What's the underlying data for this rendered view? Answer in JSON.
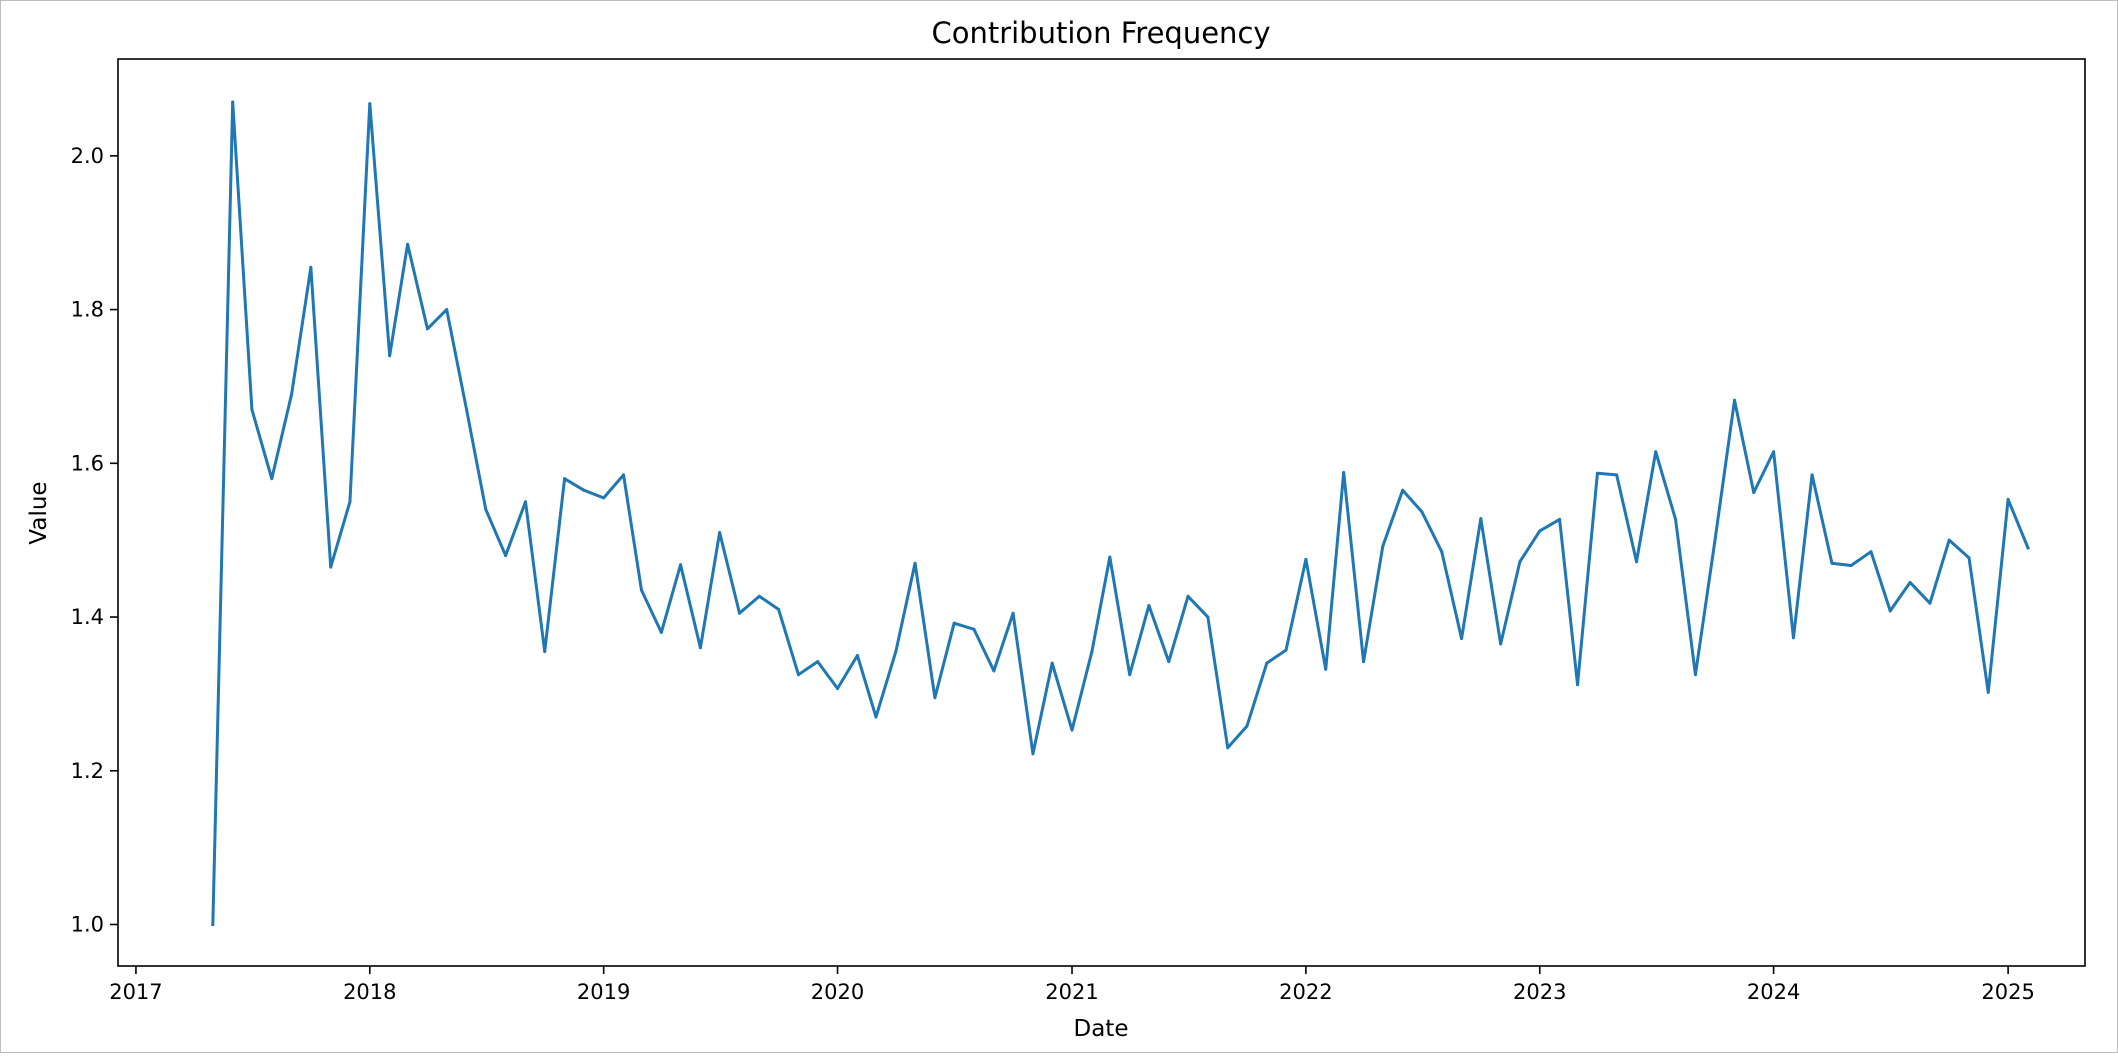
{
  "chart_data": {
    "type": "line",
    "title": "Contribution Frequency",
    "xlabel": "Date",
    "ylabel": "Value",
    "xlim": [
      "2016-12-04",
      "2025-05-01"
    ],
    "ylim": [
      0.946,
      2.126
    ],
    "grid": false,
    "legend": "none",
    "x_ticks": [
      {
        "value": "2017-01-01",
        "label": "2017"
      },
      {
        "value": "2018-01-01",
        "label": "2018"
      },
      {
        "value": "2019-01-01",
        "label": "2019"
      },
      {
        "value": "2020-01-01",
        "label": "2020"
      },
      {
        "value": "2021-01-01",
        "label": "2021"
      },
      {
        "value": "2022-01-01",
        "label": "2022"
      },
      {
        "value": "2023-01-01",
        "label": "2023"
      },
      {
        "value": "2024-01-01",
        "label": "2024"
      },
      {
        "value": "2025-01-01",
        "label": "2025"
      }
    ],
    "y_ticks": [
      {
        "value": 1.0,
        "label": "1.0"
      },
      {
        "value": 1.2,
        "label": "1.2"
      },
      {
        "value": 1.4,
        "label": "1.4"
      },
      {
        "value": 1.6,
        "label": "1.6"
      },
      {
        "value": 1.8,
        "label": "1.8"
      },
      {
        "value": 2.0,
        "label": "2.0"
      }
    ],
    "series": [
      {
        "color": "#1f77b4",
        "x": [
          "2017-05-01",
          "2017-06-01",
          "2017-07-01",
          "2017-08-01",
          "2017-09-01",
          "2017-10-01",
          "2017-11-01",
          "2017-12-01",
          "2018-01-01",
          "2018-02-01",
          "2018-03-01",
          "2018-04-01",
          "2018-05-01",
          "2018-06-01",
          "2018-07-01",
          "2018-08-01",
          "2018-09-01",
          "2018-10-01",
          "2018-11-01",
          "2018-12-01",
          "2019-01-01",
          "2019-02-01",
          "2019-03-01",
          "2019-04-01",
          "2019-05-01",
          "2019-06-01",
          "2019-07-01",
          "2019-08-01",
          "2019-09-01",
          "2019-10-01",
          "2019-11-01",
          "2019-12-01",
          "2020-01-01",
          "2020-02-01",
          "2020-03-01",
          "2020-04-01",
          "2020-05-01",
          "2020-06-01",
          "2020-07-01",
          "2020-08-01",
          "2020-09-01",
          "2020-10-01",
          "2020-11-01",
          "2020-12-01",
          "2021-01-01",
          "2021-02-01",
          "2021-03-01",
          "2021-04-01",
          "2021-05-01",
          "2021-06-01",
          "2021-07-01",
          "2021-08-01",
          "2021-09-01",
          "2021-10-01",
          "2021-11-01",
          "2021-12-01",
          "2022-01-01",
          "2022-02-01",
          "2022-03-01",
          "2022-04-01",
          "2022-05-01",
          "2022-06-01",
          "2022-07-01",
          "2022-08-01",
          "2022-09-01",
          "2022-10-01",
          "2022-11-01",
          "2022-12-01",
          "2023-01-01",
          "2023-02-01",
          "2023-03-01",
          "2023-04-01",
          "2023-05-01",
          "2023-06-01",
          "2023-07-01",
          "2023-08-01",
          "2023-09-01",
          "2023-10-01",
          "2023-11-01",
          "2023-12-01",
          "2024-01-01",
          "2024-02-01",
          "2024-03-01",
          "2024-04-01",
          "2024-05-01",
          "2024-06-01",
          "2024-07-01",
          "2024-08-01",
          "2024-09-01",
          "2024-10-01",
          "2024-11-01",
          "2024-12-01",
          "2025-01-01",
          "2025-02-01"
        ],
        "y": [
          1.0,
          2.07,
          1.67,
          1.58,
          1.69,
          1.855,
          1.465,
          1.55,
          2.068,
          1.74,
          1.885,
          1.775,
          1.8,
          1.67,
          1.54,
          1.48,
          1.55,
          1.355,
          1.58,
          1.565,
          1.555,
          1.585,
          1.435,
          1.38,
          1.468,
          1.36,
          1.51,
          1.405,
          1.427,
          1.41,
          1.325,
          1.342,
          1.307,
          1.35,
          1.27,
          1.355,
          1.47,
          1.295,
          1.392,
          1.384,
          1.33,
          1.405,
          1.222,
          1.34,
          1.253,
          1.355,
          1.478,
          1.325,
          1.415,
          1.342,
          1.427,
          1.4,
          1.23,
          1.258,
          1.34,
          1.357,
          1.475,
          1.332,
          1.588,
          1.342,
          1.492,
          1.565,
          1.537,
          1.485,
          1.372,
          1.528,
          1.365,
          1.472,
          1.512,
          1.527,
          1.312,
          1.587,
          1.585,
          1.472,
          1.615,
          1.527,
          1.325,
          1.497,
          1.682,
          1.562,
          1.615,
          1.373,
          1.585,
          1.47,
          1.467,
          1.485,
          1.408,
          1.445,
          1.418,
          1.5,
          1.477,
          1.302,
          1.553,
          1.49
        ]
      }
    ]
  }
}
